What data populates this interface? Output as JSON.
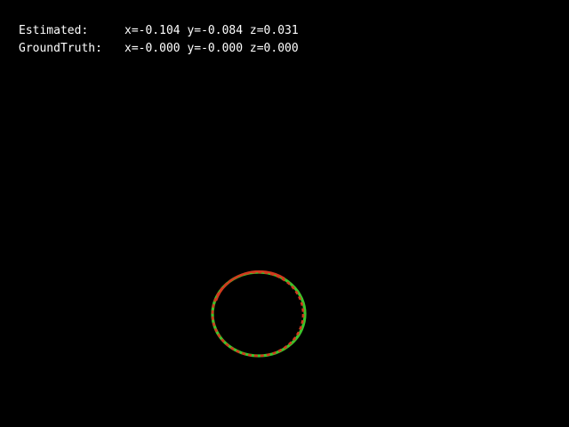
{
  "overlay": {
    "estimated": {
      "label": "Estimated:",
      "x": "x=-0.104",
      "y": "y=-0.084",
      "z": "z=0.031"
    },
    "ground_truth": {
      "label": "GroundTruth:",
      "x": "x=-0.000",
      "y": "y=-0.000",
      "z": "z=0.000"
    }
  },
  "colors": {
    "background": "#000000",
    "text": "#ffffff",
    "estimated_ring": "#d23a1e",
    "ground_truth_ring": "#3cc42a"
  },
  "scene": {
    "object_shape": "ring",
    "rings": [
      "estimated",
      "ground_truth"
    ]
  }
}
